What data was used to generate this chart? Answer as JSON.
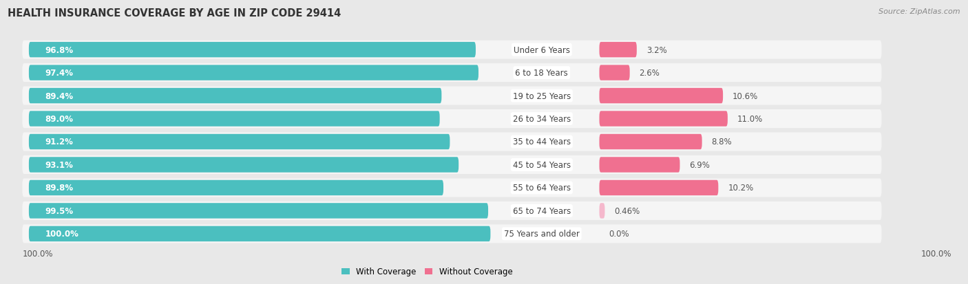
{
  "title": "HEALTH INSURANCE COVERAGE BY AGE IN ZIP CODE 29414",
  "source": "Source: ZipAtlas.com",
  "categories": [
    "Under 6 Years",
    "6 to 18 Years",
    "19 to 25 Years",
    "26 to 34 Years",
    "35 to 44 Years",
    "45 to 54 Years",
    "55 to 64 Years",
    "65 to 74 Years",
    "75 Years and older"
  ],
  "with_coverage": [
    96.8,
    97.4,
    89.4,
    89.0,
    91.2,
    93.1,
    89.8,
    99.5,
    100.0
  ],
  "without_coverage": [
    3.2,
    2.6,
    10.6,
    11.0,
    8.8,
    6.9,
    10.2,
    0.46,
    0.0
  ],
  "with_coverage_labels": [
    "96.8%",
    "97.4%",
    "89.4%",
    "89.0%",
    "91.2%",
    "93.1%",
    "89.8%",
    "99.5%",
    "100.0%"
  ],
  "without_coverage_labels": [
    "3.2%",
    "2.6%",
    "10.6%",
    "11.0%",
    "8.8%",
    "6.9%",
    "10.2%",
    "0.46%",
    "0.0%"
  ],
  "color_with": "#4BBFBF",
  "color_without": "#F07090",
  "color_without_light": "#F5B8CC",
  "background_color": "#e8e8e8",
  "bar_background": "#f8f8f8",
  "row_bg": "#f0f0f0",
  "title_fontsize": 10.5,
  "bar_label_fontsize": 8.5,
  "cat_label_fontsize": 8.5,
  "pct_label_fontsize": 8.5,
  "legend_fontsize": 8.5,
  "source_fontsize": 8
}
